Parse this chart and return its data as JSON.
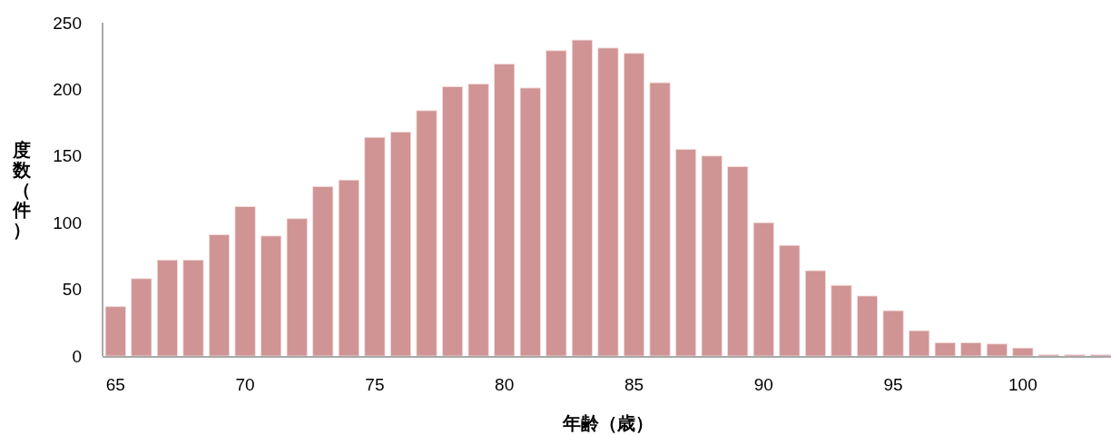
{
  "chart_data": {
    "type": "bar",
    "xlabel": "年齢（歳）",
    "ylabel": "度数（件）",
    "x": [
      65,
      66,
      67,
      68,
      69,
      70,
      71,
      72,
      73,
      74,
      75,
      76,
      77,
      78,
      79,
      80,
      81,
      82,
      83,
      84,
      85,
      86,
      87,
      88,
      89,
      90,
      91,
      92,
      93,
      94,
      95,
      96,
      97,
      98,
      99,
      100,
      101,
      102,
      103
    ],
    "values": [
      37,
      58,
      72,
      72,
      91,
      112,
      90,
      103,
      127,
      132,
      164,
      168,
      184,
      202,
      204,
      219,
      201,
      229,
      237,
      231,
      227,
      205,
      155,
      150,
      142,
      100,
      83,
      64,
      53,
      45,
      34,
      19,
      10,
      10,
      9,
      6,
      1,
      1,
      1
    ],
    "color": "#d09494",
    "xlim": [
      64.5,
      103.4
    ],
    "xticks": [
      65,
      70,
      75,
      80,
      85,
      90,
      95,
      100
    ],
    "ylim": [
      0,
      250
    ],
    "yticks": [
      0,
      50,
      100,
      150,
      200,
      250
    ],
    "grid": false
  }
}
